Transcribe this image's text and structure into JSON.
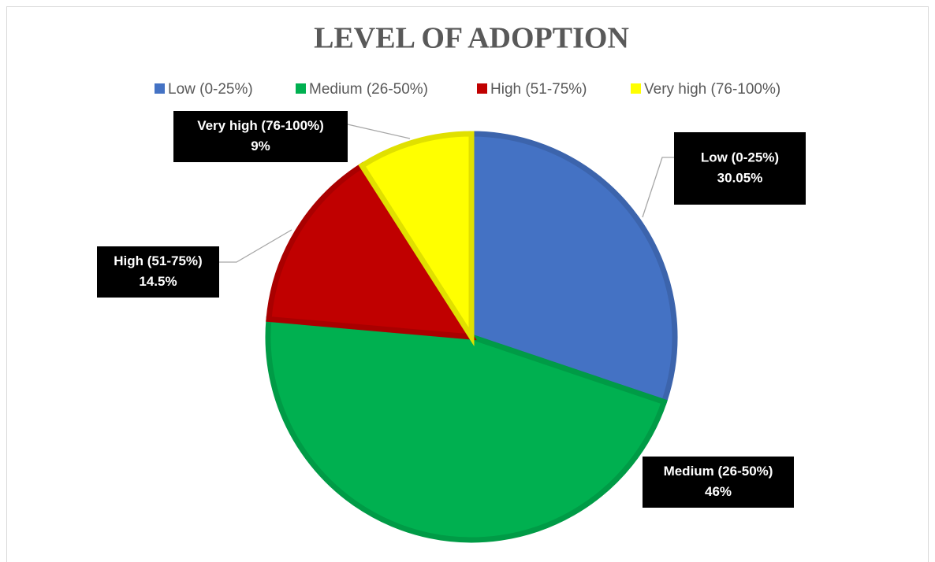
{
  "chart_data": {
    "type": "pie",
    "title": "LEVEL OF ADOPTION",
    "categories": [
      "Low (0-25%)",
      "Medium (26-50%)",
      "High (51-75%)",
      "Very high (76-100%)"
    ],
    "values": [
      30.05,
      46,
      14.5,
      9
    ],
    "value_labels": [
      "30.05%",
      "46%",
      "14.5%",
      "9%"
    ],
    "colors": [
      "#4472c4",
      "#00b050",
      "#c00000",
      "#ffff00"
    ],
    "legend": "top"
  }
}
